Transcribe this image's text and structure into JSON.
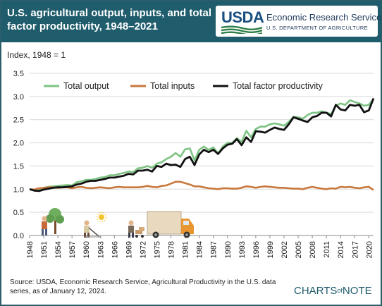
{
  "header": {
    "title": "U.S. agricultural output, inputs, and total factor productivity, 1948–2021",
    "agency_short": "USDA",
    "agency_name": "Economic Research Service",
    "department": "U.S. DEPARTMENT OF AGRICULTURE"
  },
  "footer": {
    "source": "Source: USDA, Economic Research Service, Agricultural Productivity in the U.S. data series, as of January 12, 2024.",
    "logo_main": "CHARTS",
    "logo_of": "of",
    "logo_end": "NOTE"
  },
  "colors": {
    "header_bg": "#1f5c6c",
    "total_output": "#7dc383",
    "total_inputs": "#c8783c",
    "tfp": "#111111"
  },
  "chart_data": {
    "type": "line",
    "ylabel": "Index, 1948 = 1",
    "ylim": [
      0,
      3.5
    ],
    "yticks": [
      "0.0",
      "0.5",
      "1.0",
      "1.5",
      "2.0",
      "2.5",
      "3.0",
      "3.5"
    ],
    "xlim": [
      1948,
      2021
    ],
    "xticks": [
      "1948",
      "1951",
      "1954",
      "1957",
      "1960",
      "1963",
      "1966",
      "1969",
      "1972",
      "1975",
      "1978",
      "1981",
      "1984",
      "1987",
      "1990",
      "1993",
      "1996",
      "1999",
      "2002",
      "2005",
      "2008",
      "2011",
      "2014",
      "2017",
      "2020"
    ],
    "grid": true,
    "legend": "top",
    "x": [
      1948,
      1949,
      1950,
      1951,
      1952,
      1953,
      1954,
      1955,
      1956,
      1957,
      1958,
      1959,
      1960,
      1961,
      1962,
      1963,
      1964,
      1965,
      1966,
      1967,
      1968,
      1969,
      1970,
      1971,
      1972,
      1973,
      1974,
      1975,
      1976,
      1977,
      1978,
      1979,
      1980,
      1981,
      1982,
      1983,
      1984,
      1985,
      1986,
      1987,
      1988,
      1989,
      1990,
      1991,
      1992,
      1993,
      1994,
      1995,
      1996,
      1997,
      1998,
      1999,
      2000,
      2001,
      2002,
      2003,
      2004,
      2005,
      2006,
      2007,
      2008,
      2009,
      2010,
      2011,
      2012,
      2013,
      2014,
      2015,
      2016,
      2017,
      2018,
      2019,
      2020,
      2021
    ],
    "series": [
      {
        "name": "Total output",
        "values": [
          1.0,
          0.98,
          0.99,
          1.03,
          1.05,
          1.06,
          1.07,
          1.08,
          1.09,
          1.08,
          1.15,
          1.17,
          1.2,
          1.2,
          1.22,
          1.25,
          1.26,
          1.3,
          1.3,
          1.33,
          1.35,
          1.38,
          1.37,
          1.45,
          1.46,
          1.5,
          1.46,
          1.55,
          1.58,
          1.65,
          1.7,
          1.78,
          1.7,
          1.86,
          1.88,
          1.62,
          1.85,
          1.92,
          1.85,
          1.9,
          1.77,
          1.92,
          2.0,
          2.0,
          2.1,
          2.02,
          2.26,
          2.12,
          2.3,
          2.35,
          2.35,
          2.4,
          2.42,
          2.4,
          2.37,
          2.45,
          2.56,
          2.55,
          2.52,
          2.6,
          2.65,
          2.65,
          2.68,
          2.65,
          2.62,
          2.8,
          2.85,
          2.82,
          2.92,
          2.88,
          2.85,
          2.8,
          2.82,
          2.95
        ]
      },
      {
        "name": "Total inputs",
        "values": [
          1.0,
          0.99,
          1.02,
          1.03,
          1.04,
          1.04,
          1.03,
          1.04,
          1.04,
          1.02,
          1.04,
          1.05,
          1.03,
          1.02,
          1.03,
          1.04,
          1.03,
          1.02,
          1.04,
          1.05,
          1.04,
          1.04,
          1.04,
          1.04,
          1.05,
          1.07,
          1.05,
          1.04,
          1.07,
          1.08,
          1.12,
          1.16,
          1.16,
          1.13,
          1.1,
          1.06,
          1.06,
          1.04,
          1.02,
          1.01,
          1.0,
          1.02,
          1.02,
          1.01,
          1.01,
          1.03,
          1.06,
          1.05,
          1.03,
          1.05,
          1.06,
          1.05,
          1.04,
          1.03,
          1.03,
          1.02,
          1.01,
          1.01,
          1.0,
          1.03,
          1.05,
          1.03,
          1.01,
          1.0,
          1.02,
          1.01,
          1.05,
          1.04,
          1.05,
          1.03,
          1.02,
          1.04,
          1.05,
          0.98
        ]
      },
      {
        "name": "Total factor productivity",
        "values": [
          1.0,
          0.97,
          0.96,
          0.99,
          1.01,
          1.03,
          1.04,
          1.04,
          1.05,
          1.06,
          1.1,
          1.12,
          1.16,
          1.18,
          1.18,
          1.2,
          1.22,
          1.25,
          1.25,
          1.27,
          1.29,
          1.33,
          1.32,
          1.4,
          1.4,
          1.42,
          1.38,
          1.5,
          1.48,
          1.55,
          1.52,
          1.53,
          1.48,
          1.65,
          1.7,
          1.52,
          1.75,
          1.85,
          1.8,
          1.85,
          1.76,
          1.88,
          1.96,
          1.98,
          2.08,
          1.95,
          2.12,
          2.02,
          2.25,
          2.24,
          2.22,
          2.28,
          2.33,
          2.3,
          2.28,
          2.4,
          2.55,
          2.52,
          2.48,
          2.45,
          2.55,
          2.58,
          2.65,
          2.65,
          2.57,
          2.82,
          2.72,
          2.7,
          2.82,
          2.8,
          2.82,
          2.66,
          2.7,
          2.96
        ]
      }
    ]
  }
}
